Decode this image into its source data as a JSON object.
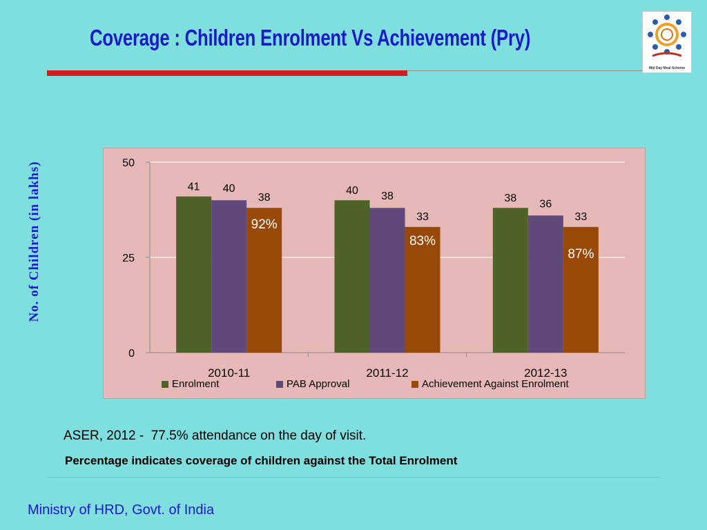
{
  "slide": {
    "title": "Coverage : Children Enrolment Vs Achievement (Pry)",
    "notes": {
      "aser": "ASER, 2012 -  77.5% attendance on the day of visit.",
      "percentage": "Percentage indicates coverage of children against the Total Enrolment"
    },
    "footer": "Ministry of HRD, Govt. of India",
    "logo_caption": "Mid Day Meal Scheme"
  },
  "colors": {
    "background": "#7fdede",
    "title": "#1a1acc",
    "accent_rule": "#d41c1c",
    "plot_area": "#e6b9b8",
    "enrolment": "#4f6228",
    "pab_approval": "#604a7b",
    "achievement": "#984807"
  },
  "chart_data": {
    "type": "bar",
    "title": "",
    "xlabel": "",
    "ylabel": "No. of Children (in lakhs)",
    "categories": [
      "2010-11",
      "2011-12",
      "2012-13"
    ],
    "yticks": [
      "0",
      "25",
      "50"
    ],
    "ylim": [
      0,
      50
    ],
    "grid": true,
    "legend_position": "bottom",
    "series": [
      {
        "name": "Enrolment",
        "values": [
          41,
          40,
          38
        ],
        "labels": [
          "41",
          "40",
          "38"
        ]
      },
      {
        "name": "PAB Approval",
        "values": [
          40,
          38,
          36
        ],
        "labels": [
          "40",
          "38",
          "36"
        ]
      },
      {
        "name": "Achievement Against Enrolment",
        "values": [
          38,
          33,
          33
        ],
        "labels": [
          "38",
          "33",
          "33"
        ]
      }
    ],
    "coverage_labels": [
      "92%",
      "83%",
      "87%"
    ]
  }
}
